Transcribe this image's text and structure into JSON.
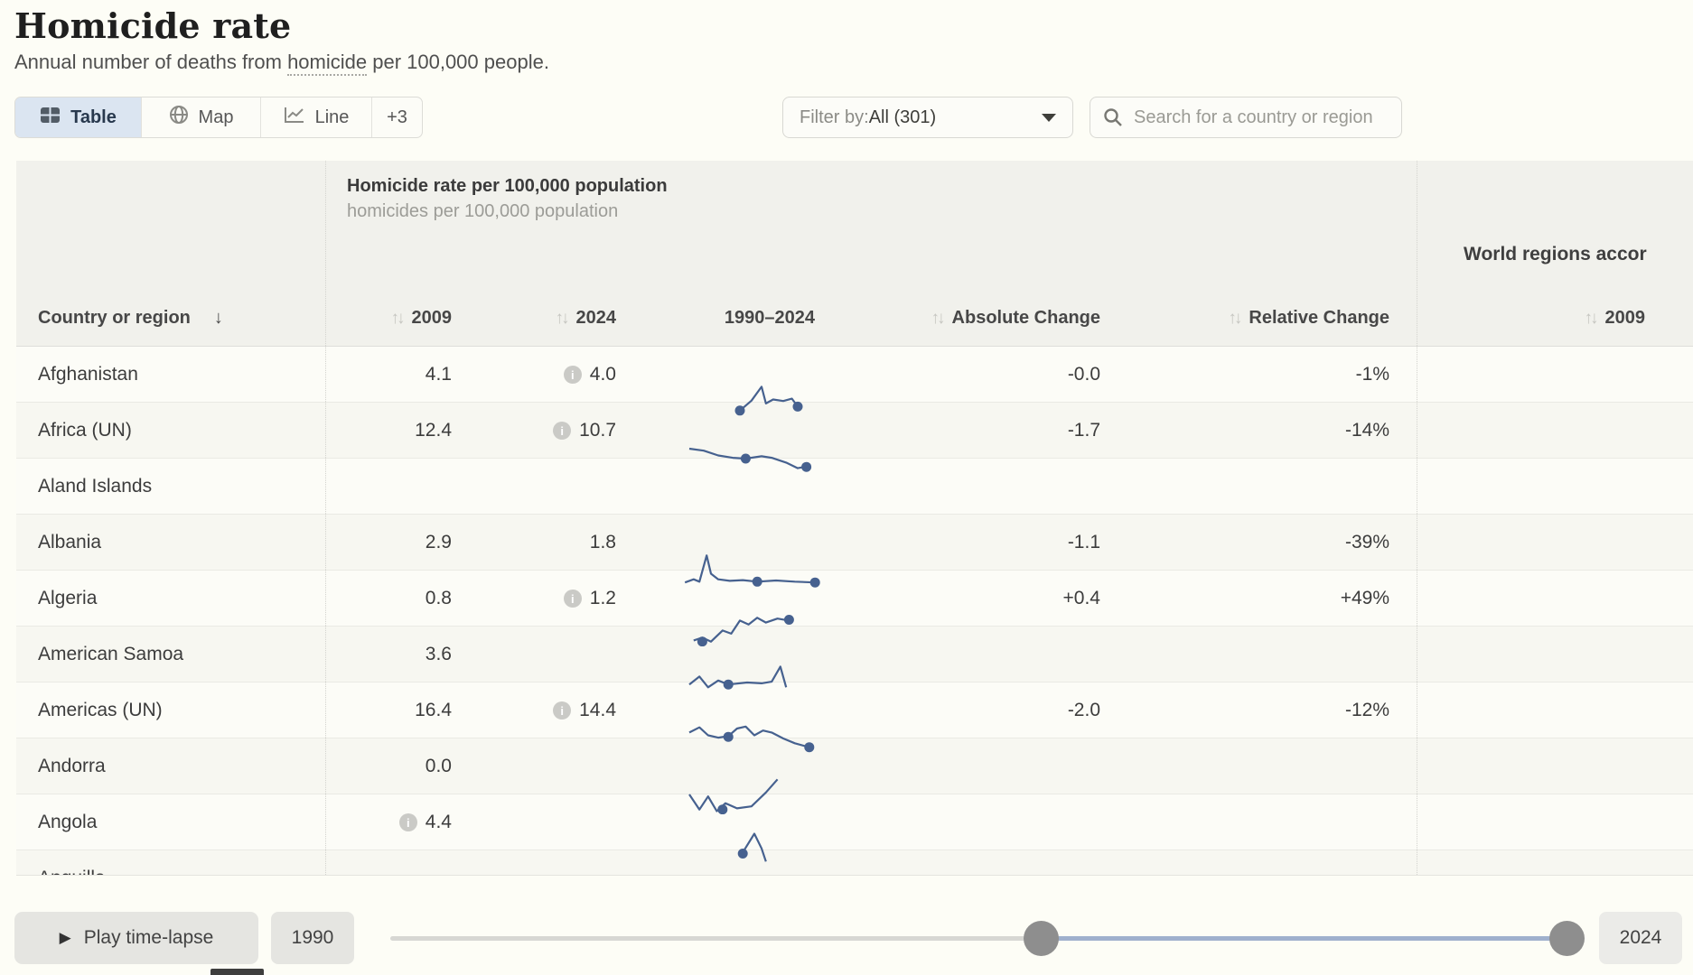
{
  "page": {
    "title": "Homicide rate",
    "subtitle_prefix": "Annual number of deaths from ",
    "subtitle_link": "homicide",
    "subtitle_suffix": " per 100,000 people."
  },
  "tabs": [
    {
      "label": "Table",
      "icon": "table-grid-icon",
      "active": true
    },
    {
      "label": "Map",
      "icon": "globe-icon",
      "active": false
    },
    {
      "label": "Line",
      "icon": "line-chart-icon",
      "active": false
    },
    {
      "label": "+3",
      "icon": null,
      "active": false
    }
  ],
  "filter": {
    "label": "Filter by: ",
    "value": "All (301)"
  },
  "search": {
    "placeholder": "Search for a country or region"
  },
  "table": {
    "group1": {
      "title": "Homicide rate per 100,000 population",
      "subtitle": "homicides per 100,000 population"
    },
    "group2": {
      "title": "World regions accor"
    },
    "columns": {
      "country": "Country or region",
      "y2009": "2009",
      "y2024": "2024",
      "range": "1990–2024",
      "abs": "Absolute Change",
      "rel": "Relative Change",
      "wr2009": "2009"
    },
    "sort": {
      "active_column": "country",
      "direction": "down"
    },
    "rows": [
      {
        "name": "Afghanistan",
        "v2009": "4.1",
        "info2009": false,
        "v2024": "4.0",
        "info2024": true,
        "abs": "-0.0",
        "rel": "-1%",
        "spark": {
          "path": [
            [
              0.4,
              0.7
            ],
            [
              0.48,
              0.45
            ],
            [
              0.55,
              0.1
            ],
            [
              0.58,
              0.52
            ],
            [
              0.63,
              0.42
            ],
            [
              0.7,
              0.46
            ],
            [
              0.76,
              0.4
            ],
            [
              0.8,
              0.6
            ]
          ],
          "dots": [
            [
              0.4,
              0.7
            ],
            [
              0.8,
              0.6
            ]
          ]
        }
      },
      {
        "name": "Africa (UN)",
        "v2009": "12.4",
        "info2009": false,
        "v2024": "10.7",
        "info2024": true,
        "abs": "-1.7",
        "rel": "-14%",
        "spark": {
          "path": [
            [
              0.05,
              0.25
            ],
            [
              0.15,
              0.3
            ],
            [
              0.25,
              0.42
            ],
            [
              0.35,
              0.48
            ],
            [
              0.44,
              0.5
            ],
            [
              0.55,
              0.44
            ],
            [
              0.62,
              0.48
            ],
            [
              0.72,
              0.6
            ],
            [
              0.8,
              0.74
            ],
            [
              0.86,
              0.7
            ]
          ],
          "dots": [
            [
              0.44,
              0.5
            ],
            [
              0.86,
              0.71
            ]
          ]
        }
      },
      {
        "name": "Aland Islands",
        "v2009": "",
        "info2009": false,
        "v2024": "",
        "info2024": false,
        "abs": "",
        "rel": "",
        "spark": null
      },
      {
        "name": "Albania",
        "v2009": "2.9",
        "info2009": false,
        "v2024": "1.8",
        "info2024": false,
        "abs": "-1.1",
        "rel": "-39%",
        "spark": {
          "path": [
            [
              0.02,
              0.8
            ],
            [
              0.08,
              0.72
            ],
            [
              0.12,
              0.78
            ],
            [
              0.17,
              0.12
            ],
            [
              0.2,
              0.58
            ],
            [
              0.25,
              0.72
            ],
            [
              0.33,
              0.76
            ],
            [
              0.42,
              0.74
            ],
            [
              0.52,
              0.78
            ],
            [
              0.65,
              0.75
            ],
            [
              0.78,
              0.78
            ],
            [
              0.92,
              0.8
            ]
          ],
          "dots": [
            [
              0.52,
              0.78
            ],
            [
              0.92,
              0.8
            ]
          ]
        }
      },
      {
        "name": "Algeria",
        "v2009": "0.8",
        "info2009": false,
        "v2024": "1.2",
        "info2024": true,
        "abs": "+0.4",
        "rel": "+49%",
        "spark": {
          "path": [
            [
              0.08,
              0.85
            ],
            [
              0.14,
              0.78
            ],
            [
              0.2,
              0.88
            ],
            [
              0.28,
              0.6
            ],
            [
              0.34,
              0.68
            ],
            [
              0.4,
              0.35
            ],
            [
              0.46,
              0.45
            ],
            [
              0.52,
              0.28
            ],
            [
              0.58,
              0.4
            ],
            [
              0.66,
              0.3
            ],
            [
              0.74,
              0.35
            ]
          ],
          "dots": [
            [
              0.14,
              0.88
            ],
            [
              0.74,
              0.33
            ]
          ]
        }
      },
      {
        "name": "American Samoa",
        "v2009": "3.6",
        "info2009": false,
        "v2024": "",
        "info2024": false,
        "abs": "",
        "rel": "",
        "spark": {
          "path": [
            [
              0.05,
              0.55
            ],
            [
              0.12,
              0.35
            ],
            [
              0.18,
              0.62
            ],
            [
              0.25,
              0.45
            ],
            [
              0.32,
              0.55
            ],
            [
              0.45,
              0.5
            ],
            [
              0.55,
              0.52
            ],
            [
              0.62,
              0.48
            ],
            [
              0.68,
              0.1
            ],
            [
              0.72,
              0.62
            ]
          ],
          "dots": [
            [
              0.32,
              0.55
            ]
          ]
        }
      },
      {
        "name": "Americas (UN)",
        "v2009": "16.4",
        "info2009": false,
        "v2024": "14.4",
        "info2024": true,
        "abs": "-2.0",
        "rel": "-12%",
        "spark": {
          "path": [
            [
              0.05,
              0.35
            ],
            [
              0.12,
              0.22
            ],
            [
              0.18,
              0.42
            ],
            [
              0.25,
              0.48
            ],
            [
              0.32,
              0.44
            ],
            [
              0.38,
              0.25
            ],
            [
              0.44,
              0.2
            ],
            [
              0.5,
              0.42
            ],
            [
              0.56,
              0.3
            ],
            [
              0.62,
              0.35
            ],
            [
              0.7,
              0.5
            ],
            [
              0.78,
              0.62
            ],
            [
              0.88,
              0.72
            ]
          ],
          "dots": [
            [
              0.32,
              0.46
            ],
            [
              0.88,
              0.72
            ]
          ]
        }
      },
      {
        "name": "Andorra",
        "v2009": "0.0",
        "info2009": false,
        "v2024": "",
        "info2024": false,
        "abs": "",
        "rel": "",
        "spark": {
          "path": [
            [
              0.05,
              0.5
            ],
            [
              0.12,
              0.88
            ],
            [
              0.18,
              0.55
            ],
            [
              0.24,
              0.92
            ],
            [
              0.3,
              0.72
            ],
            [
              0.38,
              0.85
            ],
            [
              0.48,
              0.8
            ],
            [
              0.58,
              0.45
            ],
            [
              0.66,
              0.12
            ]
          ],
          "dots": [
            [
              0.28,
              0.88
            ]
          ]
        }
      },
      {
        "name": "Angola",
        "v2009": "4.4",
        "info2009": true,
        "v2024": "",
        "info2024": false,
        "abs": "",
        "rel": "",
        "spark": {
          "path": [
            [
              0.42,
              0.55
            ],
            [
              0.5,
              0.08
            ],
            [
              0.55,
              0.45
            ],
            [
              0.58,
              0.78
            ]
          ],
          "dots": [
            [
              0.42,
              0.58
            ]
          ]
        }
      },
      {
        "name": "Anguilla",
        "v2009": "",
        "info2009": false,
        "v2024": "",
        "info2024": false,
        "abs": "",
        "rel": "",
        "spark": {
          "path": [
            [
              0.4,
              0.3
            ],
            [
              0.44,
              0.9
            ],
            [
              0.48,
              0.2
            ],
            [
              0.55,
              0.95
            ],
            [
              0.6,
              0.85
            ]
          ],
          "dots": [
            [
              0.55,
              0.9
            ]
          ]
        }
      }
    ]
  },
  "timeline": {
    "play_label": "Play time-lapse",
    "start_year": "1990",
    "end_year": "2024"
  },
  "colors": {
    "sparkline": "#46618f",
    "active_tab_bg": "#dbe5f1",
    "slider_range": "#9fb0cd",
    "slider_handle": "#8e8e8e",
    "info_icon_bg": "#cacac6",
    "header_bg": "#f1f1ec"
  }
}
